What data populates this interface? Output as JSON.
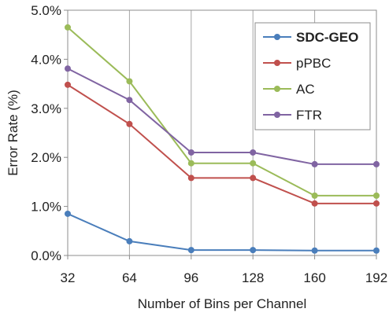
{
  "chart_data": {
    "type": "line",
    "x": [
      32,
      64,
      96,
      128,
      160,
      192
    ],
    "xlabel": "Number of Bins per Channel",
    "ylabel": "Error Rate (%)",
    "ylim": [
      0,
      5
    ],
    "yticks": [
      "0.0%",
      "1.0%",
      "2.0%",
      "3.0%",
      "4.0%",
      "5.0%"
    ],
    "xticks": [
      "32",
      "64",
      "96",
      "128",
      "160",
      "192"
    ],
    "grid": "vertical",
    "legend_position": "top-right",
    "series": [
      {
        "name": "SDC-GEO",
        "color": "#4a7ebb",
        "values": [
          0.85,
          0.29,
          0.11,
          0.11,
          0.1,
          0.1
        ]
      },
      {
        "name": "pPBC",
        "color": "#c0504d",
        "values": [
          3.48,
          2.68,
          1.58,
          1.58,
          1.06,
          1.06
        ]
      },
      {
        "name": "AC",
        "color": "#9bbb59",
        "values": [
          4.65,
          3.55,
          1.88,
          1.88,
          1.22,
          1.22
        ]
      },
      {
        "name": "FTR",
        "color": "#8064a2",
        "values": [
          3.81,
          3.17,
          2.1,
          2.1,
          1.86,
          1.86
        ]
      }
    ]
  }
}
